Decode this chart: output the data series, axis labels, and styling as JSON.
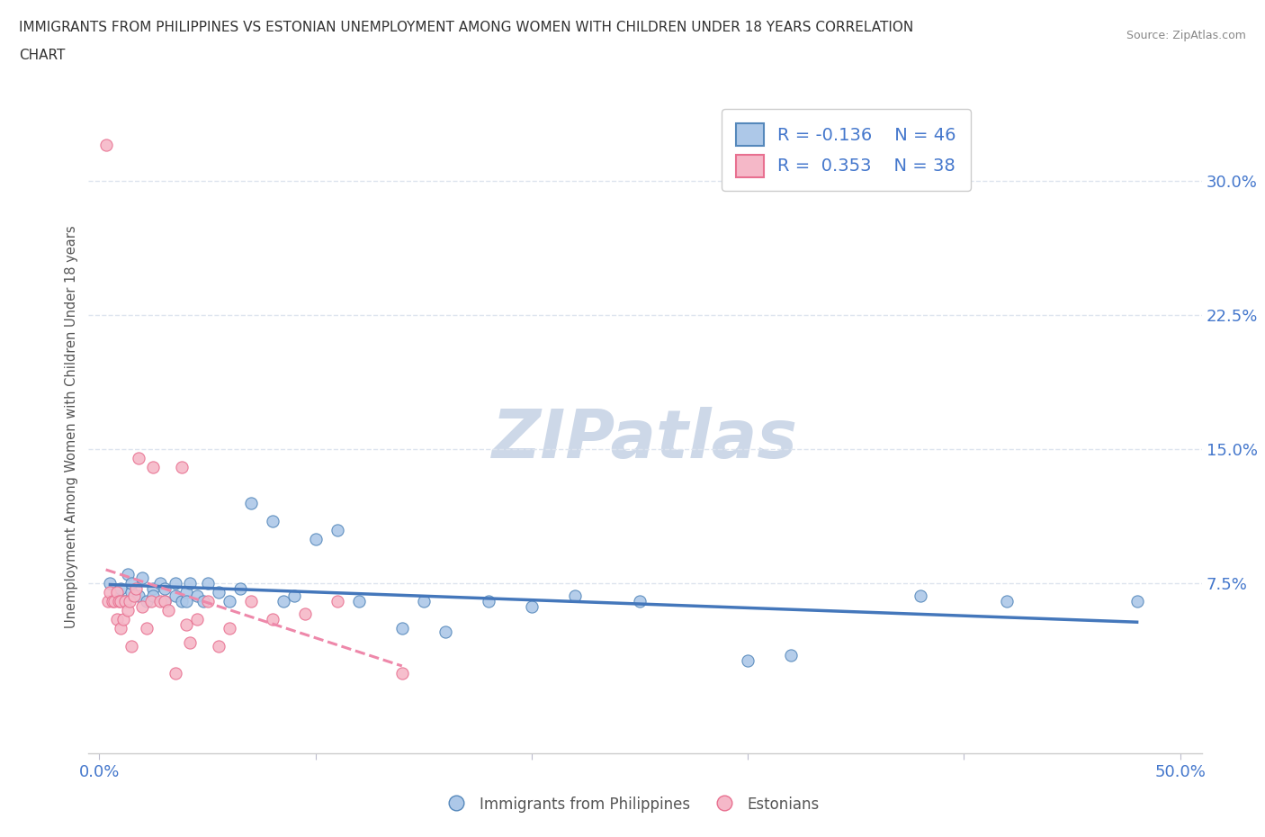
{
  "title_line1": "IMMIGRANTS FROM PHILIPPINES VS ESTONIAN UNEMPLOYMENT AMONG WOMEN WITH CHILDREN UNDER 18 YEARS CORRELATION",
  "title_line2": "CHART",
  "source": "Source: ZipAtlas.com",
  "ylabel": "Unemployment Among Women with Children Under 18 years",
  "xlim": [
    -0.005,
    0.51
  ],
  "ylim": [
    -0.02,
    0.345
  ],
  "xticks": [
    0.0,
    0.1,
    0.2,
    0.3,
    0.4,
    0.5
  ],
  "yticks": [
    0.075,
    0.15,
    0.225,
    0.3
  ],
  "yticklabels": [
    "7.5%",
    "15.0%",
    "22.5%",
    "30.0%"
  ],
  "blue_R": -0.136,
  "blue_N": 46,
  "pink_R": 0.353,
  "pink_N": 38,
  "blue_fill": "#adc8e8",
  "pink_fill": "#f5b8c8",
  "blue_edge": "#5588bb",
  "pink_edge": "#e87090",
  "blue_line": "#4477bb",
  "pink_line": "#ee88aa",
  "legend_text_color": "#4477cc",
  "watermark": "ZIPatlas",
  "watermark_color": "#cdd8e8",
  "title_color": "#333333",
  "axis_color": "#4477cc",
  "grid_color": "#dde4ee",
  "blue_x": [
    0.005,
    0.008,
    0.01,
    0.012,
    0.013,
    0.015,
    0.015,
    0.018,
    0.02,
    0.022,
    0.025,
    0.025,
    0.028,
    0.03,
    0.03,
    0.035,
    0.035,
    0.038,
    0.04,
    0.04,
    0.042,
    0.045,
    0.048,
    0.05,
    0.055,
    0.06,
    0.065,
    0.07,
    0.08,
    0.085,
    0.09,
    0.1,
    0.11,
    0.12,
    0.14,
    0.15,
    0.16,
    0.18,
    0.2,
    0.22,
    0.25,
    0.3,
    0.32,
    0.38,
    0.42,
    0.48
  ],
  "blue_y": [
    0.075,
    0.068,
    0.072,
    0.065,
    0.08,
    0.07,
    0.075,
    0.068,
    0.078,
    0.065,
    0.072,
    0.068,
    0.075,
    0.065,
    0.072,
    0.068,
    0.075,
    0.065,
    0.07,
    0.065,
    0.075,
    0.068,
    0.065,
    0.075,
    0.07,
    0.065,
    0.072,
    0.12,
    0.11,
    0.065,
    0.068,
    0.1,
    0.105,
    0.065,
    0.05,
    0.065,
    0.048,
    0.065,
    0.062,
    0.068,
    0.065,
    0.032,
    0.035,
    0.068,
    0.065,
    0.065
  ],
  "pink_x": [
    0.003,
    0.004,
    0.005,
    0.006,
    0.007,
    0.008,
    0.008,
    0.009,
    0.01,
    0.01,
    0.011,
    0.012,
    0.013,
    0.014,
    0.015,
    0.016,
    0.017,
    0.018,
    0.02,
    0.022,
    0.024,
    0.025,
    0.028,
    0.03,
    0.032,
    0.035,
    0.038,
    0.04,
    0.042,
    0.045,
    0.05,
    0.055,
    0.06,
    0.07,
    0.08,
    0.095,
    0.11,
    0.14
  ],
  "pink_y": [
    0.32,
    0.065,
    0.07,
    0.065,
    0.065,
    0.055,
    0.07,
    0.065,
    0.065,
    0.05,
    0.055,
    0.065,
    0.06,
    0.065,
    0.04,
    0.068,
    0.072,
    0.145,
    0.062,
    0.05,
    0.065,
    0.14,
    0.065,
    0.065,
    0.06,
    0.025,
    0.14,
    0.052,
    0.042,
    0.055,
    0.065,
    0.04,
    0.05,
    0.065,
    0.055,
    0.058,
    0.065,
    0.025
  ]
}
